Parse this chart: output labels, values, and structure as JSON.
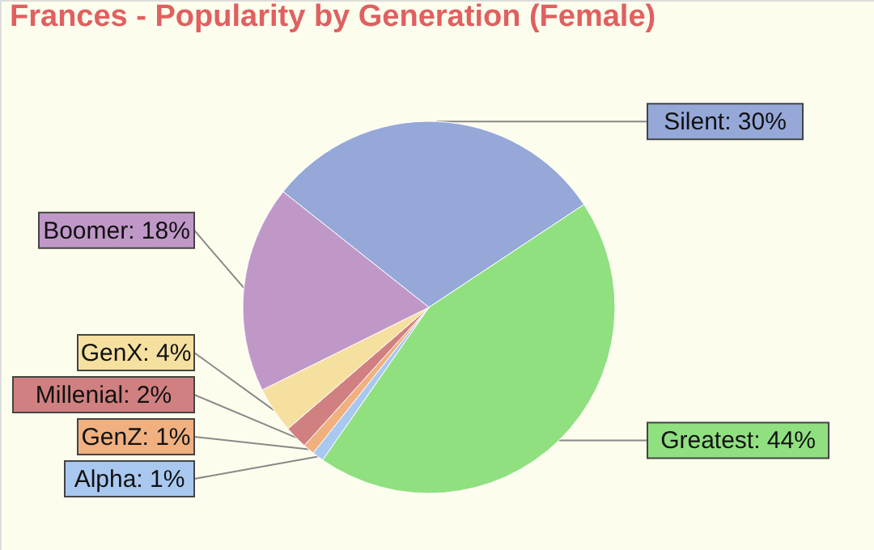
{
  "chart_data": {
    "type": "pie",
    "title": "Frances - Popularity by Generation (Female)",
    "categories": [
      "Silent: 30%",
      "Greatest: 44%",
      "Alpha: 1%",
      "GenZ: 1%",
      "Millenial: 2%",
      "GenX: 4%",
      "Boomer: 18%"
    ],
    "values": [
      30,
      44,
      1,
      1,
      2,
      4,
      18
    ],
    "colors": [
      "#95a8d8",
      "#90e080",
      "#a8c8f0",
      "#f0b080",
      "#d08080",
      "#f5e0a0",
      "#c098c8"
    ],
    "legend": false
  }
}
